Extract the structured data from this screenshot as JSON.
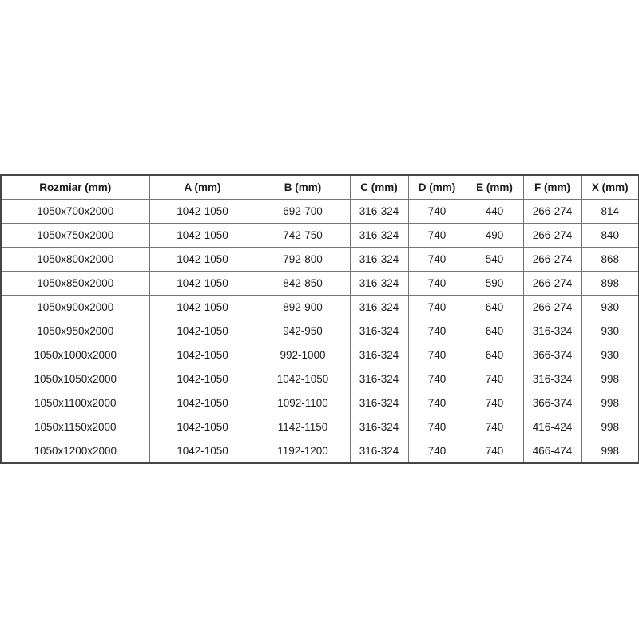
{
  "table": {
    "columns": [
      "Rozmiar (mm)",
      "A (mm)",
      "B (mm)",
      "C (mm)",
      "D (mm)",
      "E (mm)",
      "F (mm)",
      "X (mm)"
    ],
    "rows": [
      [
        "1050x700x2000",
        "1042-1050",
        "692-700",
        "316-324",
        "740",
        "440",
        "266-274",
        "814"
      ],
      [
        "1050x750x2000",
        "1042-1050",
        "742-750",
        "316-324",
        "740",
        "490",
        "266-274",
        "840"
      ],
      [
        "1050x800x2000",
        "1042-1050",
        "792-800",
        "316-324",
        "740",
        "540",
        "266-274",
        "868"
      ],
      [
        "1050x850x2000",
        "1042-1050",
        "842-850",
        "316-324",
        "740",
        "590",
        "266-274",
        "898"
      ],
      [
        "1050x900x2000",
        "1042-1050",
        "892-900",
        "316-324",
        "740",
        "640",
        "266-274",
        "930"
      ],
      [
        "1050x950x2000",
        "1042-1050",
        "942-950",
        "316-324",
        "740",
        "640",
        "316-324",
        "930"
      ],
      [
        "1050x1000x2000",
        "1042-1050",
        "992-1000",
        "316-324",
        "740",
        "640",
        "366-374",
        "930"
      ],
      [
        "1050x1050x2000",
        "1042-1050",
        "1042-1050",
        "316-324",
        "740",
        "740",
        "316-324",
        "998"
      ],
      [
        "1050x1100x2000",
        "1042-1050",
        "1092-1100",
        "316-324",
        "740",
        "740",
        "366-374",
        "998"
      ],
      [
        "1050x1150x2000",
        "1042-1050",
        "1142-1150",
        "316-324",
        "740",
        "740",
        "416-424",
        "998"
      ],
      [
        "1050x1200x2000",
        "1042-1050",
        "1192-1200",
        "316-324",
        "740",
        "740",
        "466-474",
        "998"
      ]
    ]
  },
  "colors": {
    "background": "#ffffff",
    "outer_border": "#454545",
    "inner_border": "#757575",
    "text": "#1c1c1c"
  }
}
